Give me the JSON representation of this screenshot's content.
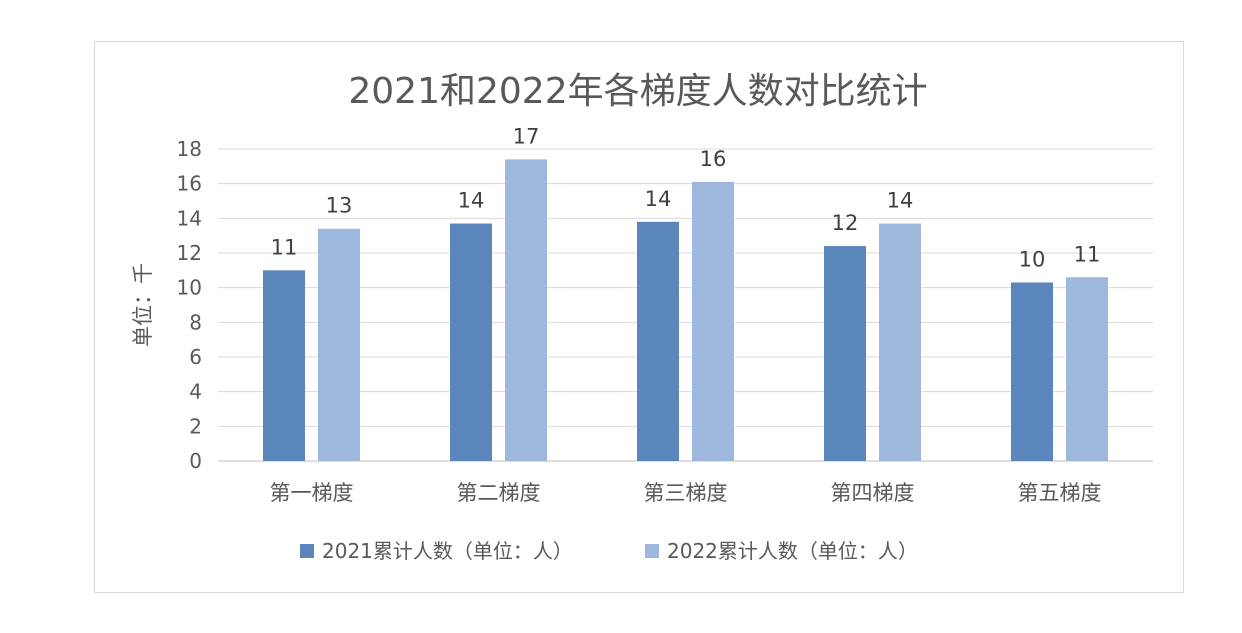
{
  "chart_data": {
    "type": "bar",
    "title": "2021和2022年各梯度人数对比统计",
    "ylabel": "单位：千",
    "xlabel": "",
    "categories": [
      "第一梯度",
      "第二梯度",
      "第三梯度",
      "第四梯度",
      "第五梯度"
    ],
    "series": [
      {
        "name": "2021累计人数（单位：人）",
        "values": [
          11.0,
          13.7,
          13.8,
          12.4,
          10.3
        ],
        "labels": [
          "11",
          "14",
          "14",
          "12",
          "10"
        ],
        "color": "#5b86bb"
      },
      {
        "name": "2022累计人数（单位：人）",
        "values": [
          13.4,
          17.4,
          16.1,
          13.7,
          10.6
        ],
        "labels": [
          "13",
          "17",
          "16",
          "14",
          "11"
        ],
        "color": "#9db8dc"
      }
    ],
    "ylim": [
      0,
      18
    ],
    "yticks": [
      0,
      2,
      4,
      6,
      8,
      10,
      12,
      14,
      16,
      18
    ],
    "grid": true,
    "legend_position": "bottom"
  }
}
